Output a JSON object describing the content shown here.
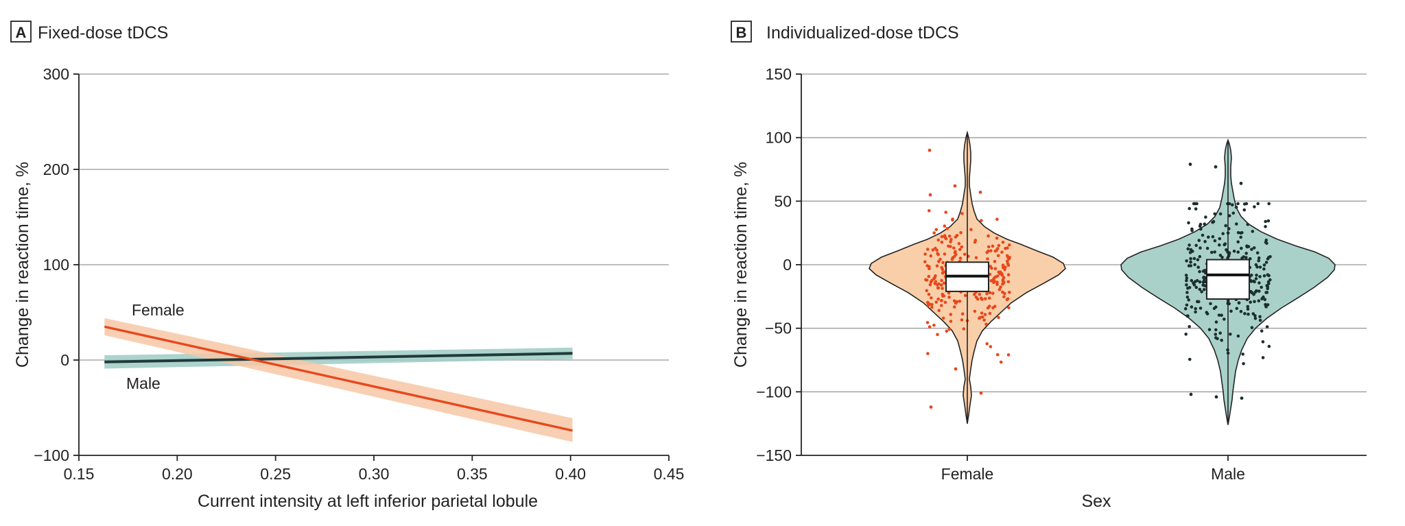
{
  "chart_data": [
    {
      "panel": "A",
      "type": "line",
      "title": "Fixed-dose tDCS",
      "xlabel": "Current intensity at left inferior parietal lobule",
      "ylabel": "Change in reaction time, %",
      "xlim": [
        0.15,
        0.45
      ],
      "ylim": [
        -100,
        300
      ],
      "xticks": [
        "0.15",
        "0.20",
        "0.25",
        "0.30",
        "0.35",
        "0.40",
        "0.45"
      ],
      "yticks": [
        "300",
        "200",
        "100",
        "0",
        "−100"
      ],
      "grid": "horizontal",
      "series": [
        {
          "name": "Female",
          "color": "#e8471c",
          "band_color": "#f7c7a6",
          "x": [
            0.163,
            0.401
          ],
          "y": [
            35,
            -74
          ],
          "lower": [
            26,
            -86
          ],
          "upper": [
            44,
            -61
          ]
        },
        {
          "name": "Male",
          "color": "#1f3a3a",
          "band_color": "#9fcbc4",
          "x": [
            0.163,
            0.401
          ],
          "y": [
            -2,
            7
          ],
          "lower": [
            -9,
            1
          ],
          "upper": [
            5,
            13
          ]
        }
      ]
    },
    {
      "panel": "B",
      "type": "violin",
      "title": "Individualized-dose tDCS",
      "xlabel": "Sex",
      "ylabel": "Change in reaction time, %",
      "ylim": [
        -150,
        150
      ],
      "yticks": [
        "150",
        "100",
        "50",
        "0",
        "−50",
        "−100",
        "−150"
      ],
      "categories": [
        "Female",
        "Male"
      ],
      "grid": "horizontal",
      "groups": [
        {
          "name": "Female",
          "fill": "#f9cfa9",
          "point_color": "#e8471c",
          "min": -125,
          "max": 104,
          "q1": -21,
          "median": -9,
          "q3": 2,
          "outliers": [
            90,
            62,
            57,
            55,
            -82,
            -101,
            -112
          ]
        },
        {
          "name": "Male",
          "fill": "#a9d1ca",
          "point_color": "#1c2e2e",
          "min": -126,
          "max": 98,
          "q1": -27,
          "median": -8,
          "q3": 4,
          "outliers": [
            79,
            77,
            64,
            -102,
            -104,
            -105
          ]
        }
      ]
    }
  ]
}
